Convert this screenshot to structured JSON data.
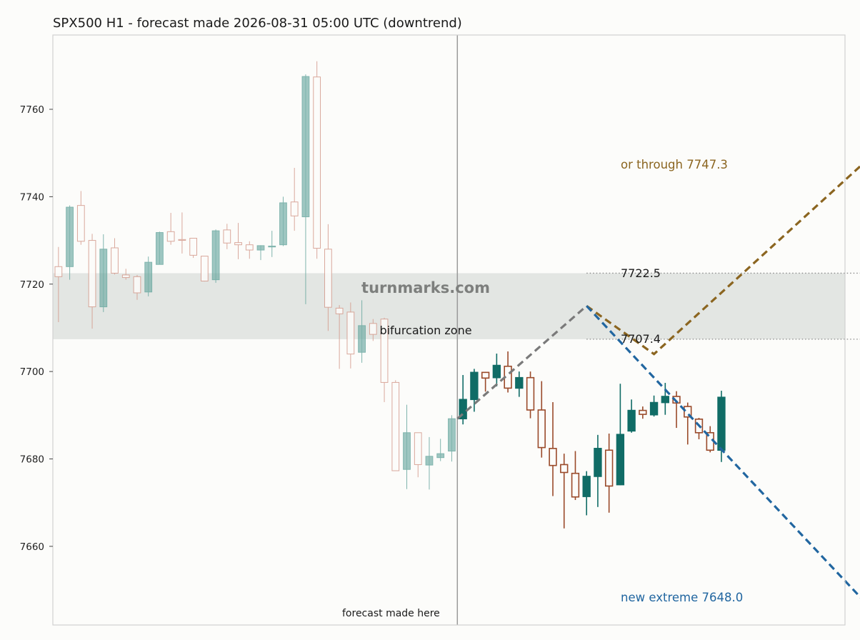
{
  "chart_data": {
    "type": "candlestick",
    "title": "SPX500 H1 - forecast made 2026-08-31 05:00 UTC (downtrend)",
    "ylim": [
      7642,
      7777
    ],
    "y_ticks": [
      7660,
      7680,
      7700,
      7720,
      7740,
      7760
    ],
    "x_range": [
      -0.5,
      70
    ],
    "grid": false,
    "history_candles": [
      [
        7724,
        7728.5,
        7711.3,
        7721.7
      ],
      [
        7724,
        7738,
        7721,
        7737.6
      ],
      [
        7738,
        7741.3,
        7729,
        7729.8
      ],
      [
        7730,
        7731.5,
        7709.8,
        7714.8
      ],
      [
        7714.8,
        7731.4,
        7713.6,
        7728
      ],
      [
        7728.3,
        7730.5,
        7722.2,
        7722.5
      ],
      [
        7722.1,
        7723.5,
        7721,
        7721.5
      ],
      [
        7721.7,
        7722.1,
        7716.4,
        7718
      ],
      [
        7718.2,
        7726.3,
        7717.2,
        7725
      ],
      [
        7724.5,
        7732,
        7724.5,
        7731.8
      ],
      [
        7732,
        7736.3,
        7729,
        7729.8
      ],
      [
        7730.2,
        7736.4,
        7727,
        7730.1
      ],
      [
        7730.5,
        7730.5,
        7726,
        7726.6
      ],
      [
        7726.4,
        7726.4,
        7720.6,
        7720.7
      ],
      [
        7721,
        7732.5,
        7720.3,
        7732.2
      ],
      [
        7732.4,
        7733.8,
        7728,
        7729.4
      ],
      [
        7729.5,
        7734,
        7725.7,
        7729
      ],
      [
        7729,
        7729.8,
        7725.8,
        7727.8
      ],
      [
        7727.8,
        7728.9,
        7725.5,
        7728.8
      ],
      [
        7728.6,
        7732.2,
        7726.2,
        7728.7
      ],
      [
        7729,
        7740,
        7728.7,
        7738.6
      ],
      [
        7738.8,
        7746.6,
        7732.2,
        7735.6
      ],
      [
        7735.4,
        7768,
        7715.4,
        7767.5
      ],
      [
        7767.4,
        7771,
        7725.8,
        7728.2
      ],
      [
        7728,
        7733.7,
        7709.3,
        7714.7
      ],
      [
        7714.5,
        7715.2,
        7700.6,
        7713.2
      ],
      [
        7713.6,
        7715.8,
        7700.7,
        7704
      ],
      [
        7704.4,
        7716.3,
        7702,
        7710.5
      ],
      [
        7711,
        7712,
        7707,
        7708.5
      ],
      [
        7712,
        7712.3,
        7693,
        7697.5
      ],
      [
        7697.5,
        7698,
        7677.3,
        7677.3
      ],
      [
        7677.6,
        7692.4,
        7673.1,
        7686
      ],
      [
        7686,
        7686,
        7675.8,
        7678.7
      ],
      [
        7678.6,
        7685,
        7673,
        7680.6
      ],
      [
        7680.3,
        7684.6,
        7679.5,
        7681.2
      ],
      [
        7681.8,
        7690,
        7679.4,
        7689.2
      ]
    ],
    "forecast_candles": [
      [
        7689.2,
        7699.2,
        7687.9,
        7693.6
      ],
      [
        7693.6,
        7700.6,
        7690.8,
        7699.8
      ],
      [
        7699.8,
        7699.9,
        7695.4,
        7698.5
      ],
      [
        7698.6,
        7704.1,
        7696.6,
        7701.4
      ],
      [
        7701.2,
        7704.6,
        7695.2,
        7696.2
      ],
      [
        7696.2,
        7700,
        7694.2,
        7698.6
      ],
      [
        7698.6,
        7700,
        7689.3,
        7691.2
      ],
      [
        7691.2,
        7697.8,
        7680.3,
        7682.6
      ],
      [
        7682.4,
        7693,
        7671.5,
        7678.5
      ],
      [
        7678.7,
        7681.2,
        7664.1,
        7676.9
      ],
      [
        7676.7,
        7681.8,
        7670.6,
        7671.3
      ],
      [
        7671.4,
        7677.2,
        7667.1,
        7676
      ],
      [
        7676,
        7685.5,
        7669,
        7682.4
      ],
      [
        7682,
        7685.8,
        7667.7,
        7673.8
      ],
      [
        7674.1,
        7697.2,
        7674,
        7685.6
      ],
      [
        7686.4,
        7693.6,
        7686,
        7691.1
      ],
      [
        7691.1,
        7692,
        7689.2,
        7690.2
      ],
      [
        7690.1,
        7694.5,
        7689.7,
        7692.9
      ],
      [
        7692.9,
        7697.4,
        7690.1,
        7694.3
      ],
      [
        7694.3,
        7695.5,
        7687.1,
        7692.8
      ],
      [
        7692,
        7692.9,
        7683.3,
        7689.6
      ],
      [
        7689.1,
        7689.4,
        7684.5,
        7686
      ],
      [
        7686,
        7687.5,
        7681.5,
        7682
      ],
      [
        7682,
        7695.6,
        7679.3,
        7694.1
      ]
    ],
    "forecast_start_x": 35.5,
    "bifurcation_zone": {
      "low": 7707.4,
      "high": 7722.5,
      "label": "bifurcation zone"
    },
    "gray_path": [
      [
        35.5,
        7689.2
      ],
      [
        47,
        7715
      ]
    ],
    "brown_path": [
      [
        47,
        7715
      ],
      [
        53,
        7704
      ],
      [
        71.5,
        7747.3
      ]
    ],
    "blue_path": [
      [
        47,
        7715
      ],
      [
        71.5,
        7648.0
      ]
    ],
    "level_lines": [
      7722.5,
      7707.4
    ],
    "level_line_x_start": 47,
    "level_line_x_end": 71.5,
    "annotations": {
      "upper_target": "or through 7747.3",
      "lower_target": "new extreme 7648.0",
      "level_high": "7722.5",
      "level_low": "7707.4",
      "forecast_marker": "forecast made here",
      "watermark": "turnmarks.com"
    },
    "colors": {
      "up_history": "#6aa8a0",
      "down_history": "#d49a8c",
      "up_forecast": "#106c66",
      "down_forecast": "#9a4a2a",
      "brown_path": "#8b6520",
      "blue_path": "#2166a0",
      "gray_path": "#7a7a7a",
      "zone": "#e3e6e3",
      "level": "#888888"
    }
  }
}
